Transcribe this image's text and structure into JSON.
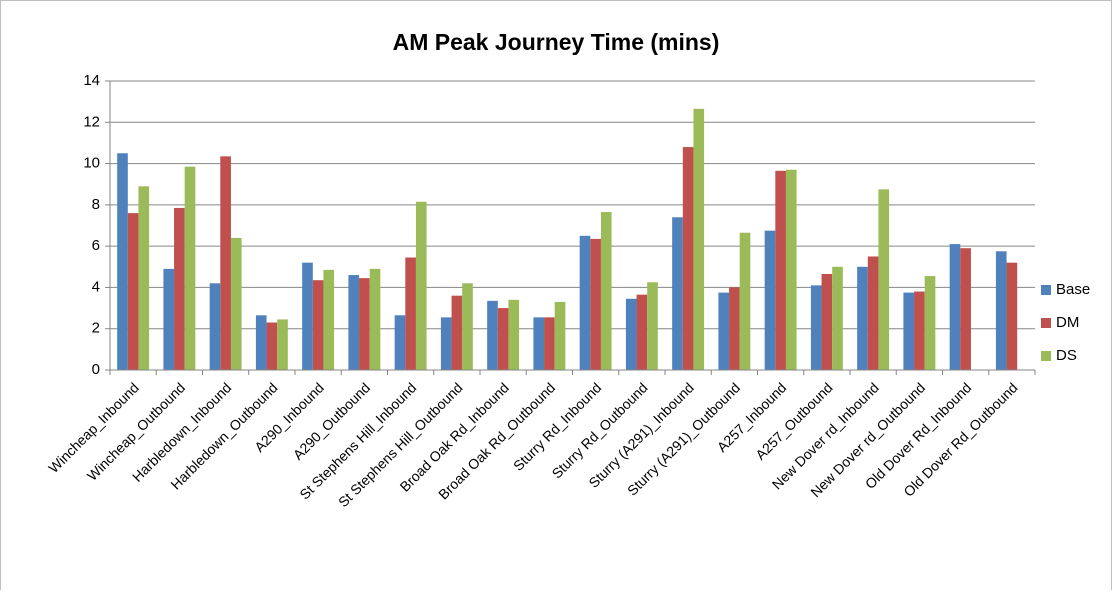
{
  "chart_data": {
    "type": "bar",
    "title": "AM Peak Journey Time (mins)",
    "categories": [
      "Wincheap_Inbound",
      "Wincheap_Outbound",
      "Harbledown_Inbound",
      "Harbledown_Outbound",
      "A290_Inbound",
      "A290_Outbound",
      "St Stephens Hill_Inbound",
      "St Stephens Hill_Outbound",
      "Broad Oak Rd_Inbound",
      "Broad Oak Rd_Outbound",
      "Sturry Rd_Inbound",
      "Sturry Rd_Outbound",
      "Sturry (A291)_Inbound",
      "Sturry (A291)_Outbound",
      "A257_Inbound",
      "A257_Outbound",
      "New Dover rd_Inbound",
      "New Dover rd_Outbound",
      "Old Dover Rd_Inbound",
      "Old Dover Rd_Outbound"
    ],
    "series": [
      {
        "name": "Base",
        "color": "#4f81bd",
        "values": [
          10.5,
          4.9,
          4.2,
          2.65,
          5.2,
          4.6,
          2.65,
          2.55,
          3.35,
          2.55,
          6.5,
          3.45,
          7.4,
          3.75,
          6.75,
          4.1,
          5.0,
          3.75,
          6.1,
          5.75
        ]
      },
      {
        "name": "DM",
        "color": "#c0504d",
        "values": [
          7.6,
          7.85,
          10.35,
          2.3,
          4.35,
          4.45,
          5.45,
          3.6,
          3.0,
          2.55,
          6.35,
          3.65,
          10.8,
          4.0,
          9.65,
          4.65,
          5.5,
          3.8,
          5.9,
          5.2
        ]
      },
      {
        "name": "DS",
        "color": "#9bbb59",
        "values": [
          8.9,
          9.85,
          6.4,
          2.45,
          4.85,
          4.9,
          8.15,
          4.2,
          3.4,
          3.3,
          7.65,
          4.25,
          12.65,
          6.65,
          9.7,
          5.0,
          8.75,
          4.55,
          null,
          null
        ]
      }
    ],
    "ylim": [
      0,
      14
    ],
    "yticks": [
      0,
      2,
      4,
      6,
      8,
      10,
      12,
      14
    ],
    "grid": true,
    "legend": "right"
  }
}
